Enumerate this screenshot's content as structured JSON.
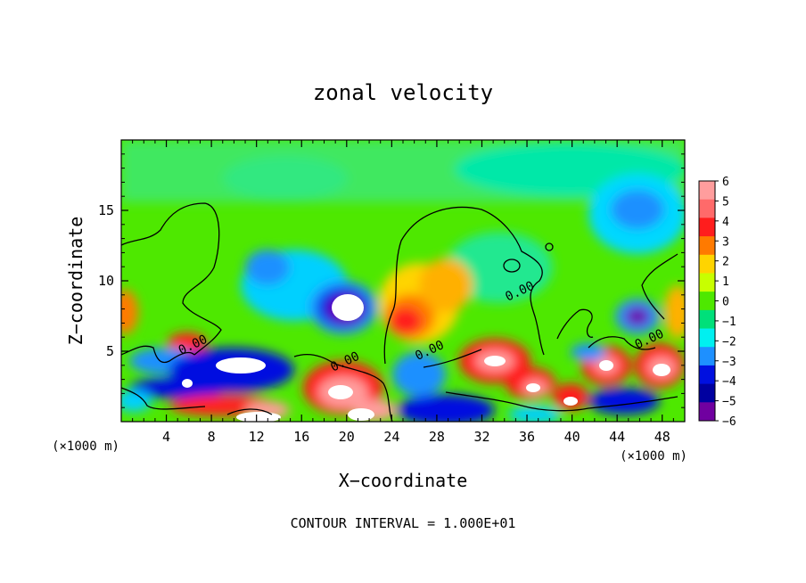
{
  "chart_data": {
    "type": "heatmap",
    "title": "zonal velocity",
    "xlabel": "X−coordinate",
    "ylabel": "Z−coordinate",
    "x_unit_left": "(×1000 m)",
    "x_unit_right": "(×1000 m)",
    "footer": "CONTOUR INTERVAL = 1.000E+01",
    "xlim": [
      0,
      50
    ],
    "ylim": [
      0,
      20
    ],
    "x_ticks": [
      4,
      8,
      12,
      16,
      20,
      24,
      28,
      32,
      36,
      40,
      44,
      48
    ],
    "x_tick_labels": [
      "4",
      "8",
      "12",
      "16",
      "20",
      "24",
      "28",
      "32",
      "36",
      "40",
      "44",
      "48"
    ],
    "y_ticks": [
      5,
      10,
      15
    ],
    "y_tick_labels": [
      "5",
      "10",
      "15"
    ],
    "colorbar": {
      "min": -6,
      "max": 6,
      "labels": [
        "6",
        "5",
        "4",
        "3",
        "2",
        "1",
        "0",
        "−1",
        "−2",
        "−3",
        "−4",
        "−5",
        "−6"
      ],
      "colors": [
        "#ff9d9d",
        "#ff6a6a",
        "#ff1d1d",
        "#ff7a00",
        "#ffd400",
        "#c8ff00",
        "#4ee800",
        "#00e07a",
        "#00f0f0",
        "#1e90ff",
        "#0010e0",
        "#0000a0",
        "#7000a0"
      ]
    },
    "contour_label": "0.00",
    "contour_label_positions": [
      [
        6.5,
        5.2
      ],
      [
        20,
        4.0
      ],
      [
        27.5,
        4.8
      ],
      [
        35.5,
        9.0
      ],
      [
        47,
        5.6
      ]
    ],
    "features": [
      {
        "x": 20.0,
        "z": 8.0,
        "value": -6
      },
      {
        "x": 10.5,
        "z": 4.0,
        "value": -4
      },
      {
        "x": 6.0,
        "z": 5.5,
        "value": 4
      },
      {
        "x": 18.5,
        "z": 2.5,
        "value": 5
      },
      {
        "x": 25.5,
        "z": 7.0,
        "value": 4
      },
      {
        "x": 29.0,
        "z": 9.5,
        "value": 2
      },
      {
        "x": 33.0,
        "z": 4.0,
        "value": 5
      },
      {
        "x": 36.0,
        "z": 3.0,
        "value": 5
      },
      {
        "x": 44.0,
        "z": 4.0,
        "value": 5
      },
      {
        "x": 47.5,
        "z": 3.5,
        "value": 6
      },
      {
        "x": 45.5,
        "z": 7.0,
        "value": -5
      },
      {
        "x": 46.0,
        "z": 15.5,
        "value": -3
      },
      {
        "x": 13.5,
        "z": 11.5,
        "value": -2
      },
      {
        "x": 9.0,
        "z": 2.0,
        "value": -3
      },
      {
        "x": 31.0,
        "z": 2.0,
        "value": -3
      }
    ]
  }
}
